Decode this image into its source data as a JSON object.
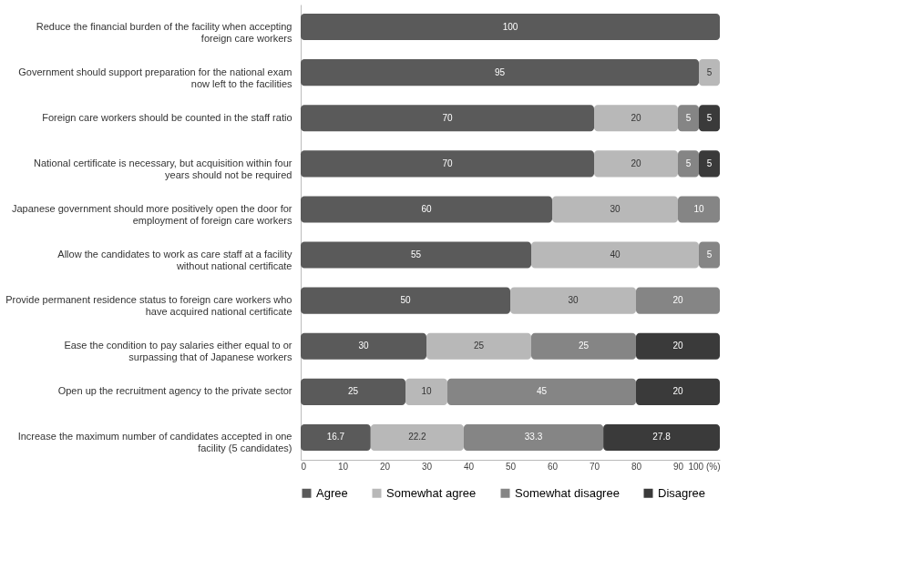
{
  "chart_data": {
    "type": "bar",
    "orientation": "horizontal",
    "stacked": true,
    "data_labels": true,
    "legend": "bottom",
    "grid": false,
    "categories": [
      "Reduce the financial burden of the facility when accepting foreign care workers",
      "Government should support preparation for the national exam now left to the facilities",
      "Foreign care workers should be counted in the staff ratio",
      "National certificate is necessary, but acquisition within four years should not be required",
      "Japanese government should more positively open the door for employment of foreign care workers",
      "Allow the candidates to work as care staff at a facility without national certificate",
      "Provide permanent residence status to foreign care workers who have acquired national certificate",
      "Ease the condition to pay salaries either equal to or surpassing that of Japanese workers",
      "Open up the recruitment agency to the private sector",
      "Increase the maximum number of candidates accepted in one facility (5 candidates)"
    ],
    "series": [
      {
        "name": "Agree",
        "color": "#5a5a5a",
        "values": [
          100,
          95,
          70,
          70,
          60,
          55,
          50,
          30,
          25,
          16.7
        ]
      },
      {
        "name": "Somewhat agree",
        "color": "#b8b8b8",
        "values": [
          null,
          5,
          20,
          20,
          30,
          40,
          30,
          25,
          10,
          22.2
        ]
      },
      {
        "name": "Somewhat disagree",
        "color": "#858585",
        "values": [
          null,
          null,
          5,
          5,
          10,
          5,
          20,
          25,
          45,
          33.3
        ]
      },
      {
        "name": "Disagree",
        "color": "#3a3a3a",
        "values": [
          null,
          null,
          5,
          5,
          null,
          null,
          null,
          20,
          20,
          27.8
        ]
      }
    ],
    "xlim": [
      0,
      100
    ],
    "xticks": [
      0,
      10,
      20,
      30,
      40,
      50,
      60,
      70,
      80,
      90,
      {
        "value": 100,
        "label": "100 (%)"
      }
    ]
  }
}
